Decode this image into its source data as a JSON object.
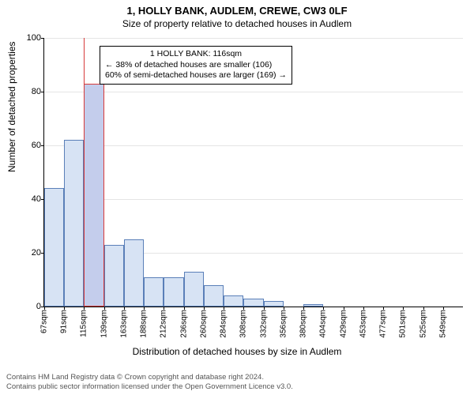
{
  "address": "1, HOLLY BANK, AUDLEM, CREWE, CW3 0LF",
  "subtitle": "Size of property relative to detached houses in Audlem",
  "ylabel": "Number of detached properties",
  "xlabel": "Distribution of detached houses by size in Audlem",
  "chart": {
    "type": "histogram",
    "ylim": [
      0,
      100
    ],
    "ytick_step": 20,
    "yticks": [
      0,
      20,
      40,
      60,
      80,
      100
    ],
    "xticks": [
      "67sqm",
      "91sqm",
      "115sqm",
      "139sqm",
      "163sqm",
      "188sqm",
      "212sqm",
      "236sqm",
      "260sqm",
      "284sqm",
      "308sqm",
      "332sqm",
      "356sqm",
      "380sqm",
      "404sqm",
      "429sqm",
      "453sqm",
      "477sqm",
      "501sqm",
      "525sqm",
      "549sqm"
    ],
    "tick_between": true,
    "bar_fill": "#d7e3f4",
    "bar_stroke": "#5a7fb8",
    "highlight_fill": "#c4cdec",
    "highlight_stroke": "#d73a3a",
    "grid_color": "#e5e5e5",
    "background": "#ffffff",
    "values": [
      44,
      62,
      83,
      23,
      25,
      11,
      11,
      13,
      8,
      4,
      3,
      2,
      0,
      1,
      0,
      0,
      0,
      0,
      0,
      0,
      0
    ],
    "highlight_index": 2
  },
  "annotation": {
    "line1": "1 HOLLY BANK: 116sqm",
    "line2": "← 38% of detached houses are smaller (106)",
    "line3": "60% of semi-detached houses are larger (169) →"
  },
  "footer": {
    "line1": "Contains HM Land Registry data © Crown copyright and database right 2024.",
    "line2": "Contains public sector information licensed under the Open Government Licence v3.0."
  }
}
